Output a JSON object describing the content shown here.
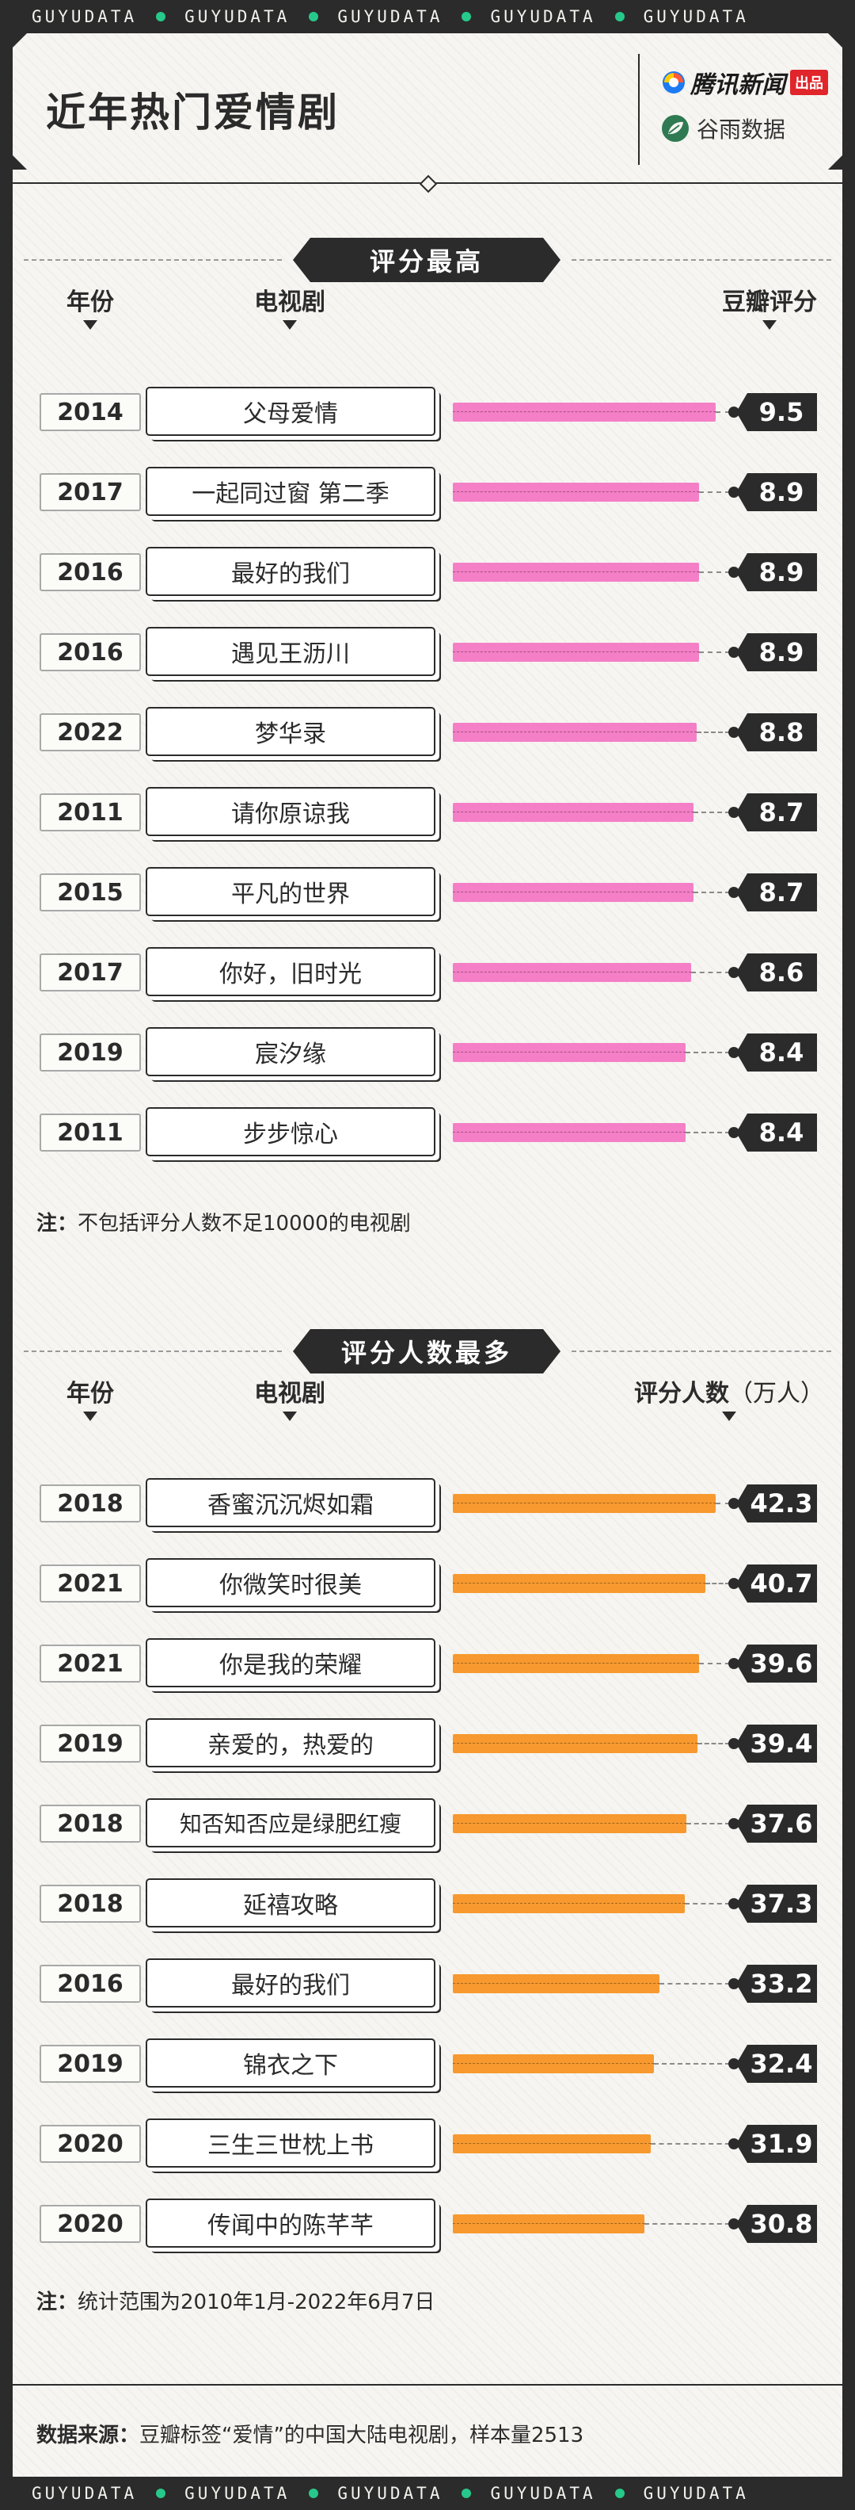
{
  "brand": {
    "ticker_word": "GUYUDATA",
    "ticker_repeat": 5,
    "accent_green": "#27c98b"
  },
  "header": {
    "title": "近年热门爱情剧",
    "logo_news_text": "腾讯新闻",
    "logo_news_tag": "出品",
    "logo_guyu_text": "谷雨数据"
  },
  "chart_data": [
    {
      "type": "bar",
      "orientation": "horizontal",
      "title": "评分最高",
      "headers": {
        "year": "年份",
        "name": "电视剧",
        "value": "豆瓣评分",
        "value_unit": ""
      },
      "bar_color": "#f47fc6",
      "xlim": [
        0,
        9.5
      ],
      "rows": [
        {
          "year": "2014",
          "name": "父母爱情",
          "value": 9.5,
          "label": "9.5"
        },
        {
          "year": "2017",
          "name": "一起同过窗 第二季",
          "value": 8.9,
          "label": "8.9"
        },
        {
          "year": "2016",
          "name": "最好的我们",
          "value": 8.9,
          "label": "8.9"
        },
        {
          "year": "2016",
          "name": "遇见王沥川",
          "value": 8.9,
          "label": "8.9"
        },
        {
          "year": "2022",
          "name": "梦华录",
          "value": 8.8,
          "label": "8.8"
        },
        {
          "year": "2011",
          "name": "请你原谅我",
          "value": 8.7,
          "label": "8.7"
        },
        {
          "year": "2015",
          "name": "平凡的世界",
          "value": 8.7,
          "label": "8.7"
        },
        {
          "year": "2017",
          "name": "你好，旧时光",
          "value": 8.6,
          "label": "8.6"
        },
        {
          "year": "2019",
          "name": "宸汐缘",
          "value": 8.4,
          "label": "8.4"
        },
        {
          "year": "2011",
          "name": "步步惊心",
          "value": 8.4,
          "label": "8.4"
        }
      ],
      "note_label": "注：",
      "note_text": "不包括评分人数不足10000的电视剧"
    },
    {
      "type": "bar",
      "orientation": "horizontal",
      "title": "评分人数最多",
      "headers": {
        "year": "年份",
        "name": "电视剧",
        "value": "评分人数",
        "value_unit": "（万人）"
      },
      "bar_color": "#f7992e",
      "xlim": [
        0,
        42.3
      ],
      "rows": [
        {
          "year": "2018",
          "name": "香蜜沉沉烬如霜",
          "value": 42.3,
          "label": "42.3"
        },
        {
          "year": "2021",
          "name": "你微笑时很美",
          "value": 40.7,
          "label": "40.7"
        },
        {
          "year": "2021",
          "name": "你是我的荣耀",
          "value": 39.6,
          "label": "39.6"
        },
        {
          "year": "2019",
          "name": "亲爱的，热爱的",
          "value": 39.4,
          "label": "39.4"
        },
        {
          "year": "2018",
          "name": "知否知否应是绿肥红瘦",
          "value": 37.6,
          "label": "37.6"
        },
        {
          "year": "2018",
          "name": "延禧攻略",
          "value": 37.3,
          "label": "37.3"
        },
        {
          "year": "2016",
          "name": "最好的我们",
          "value": 33.2,
          "label": "33.2"
        },
        {
          "year": "2019",
          "name": "锦衣之下",
          "value": 32.4,
          "label": "32.4"
        },
        {
          "year": "2020",
          "name": "三生三世枕上书",
          "value": 31.9,
          "label": "31.9"
        },
        {
          "year": "2020",
          "name": "传闻中的陈芊芊",
          "value": 30.8,
          "label": "30.8"
        }
      ],
      "note_label": "注：",
      "note_text": "统计范围为2010年1月-2022年6月7日"
    }
  ],
  "source": {
    "label": "数据来源：",
    "text": "豆瓣标签“爱情”的中国大陆电视剧，样本量2513"
  }
}
